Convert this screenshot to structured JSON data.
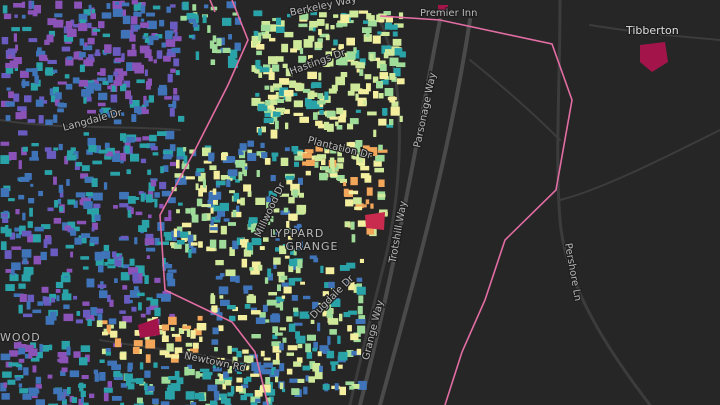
{
  "labels": {
    "tibberton": "Tibberton",
    "premier_inn": "Premier Inn",
    "berkeley_way": "Berkeley Way",
    "hastings_dr": "Hastings Dr",
    "plantation_dr": "Plantation Dr",
    "parsonage_way": "Parsonage Way",
    "langdale_dr": "Langdale Dr",
    "millwood_dr": "Millwood Dr",
    "lyppard": "LYPPARD",
    "grange": "GRANGE",
    "trotshill_way": "Trotshill Way",
    "pershore_ln": "Pershore Ln",
    "dugdale_dr": "Dugdale Dr",
    "grange_way": "Grange Way",
    "newtown_rd": "Newtown Rd",
    "wood": "WOOD"
  }
}
